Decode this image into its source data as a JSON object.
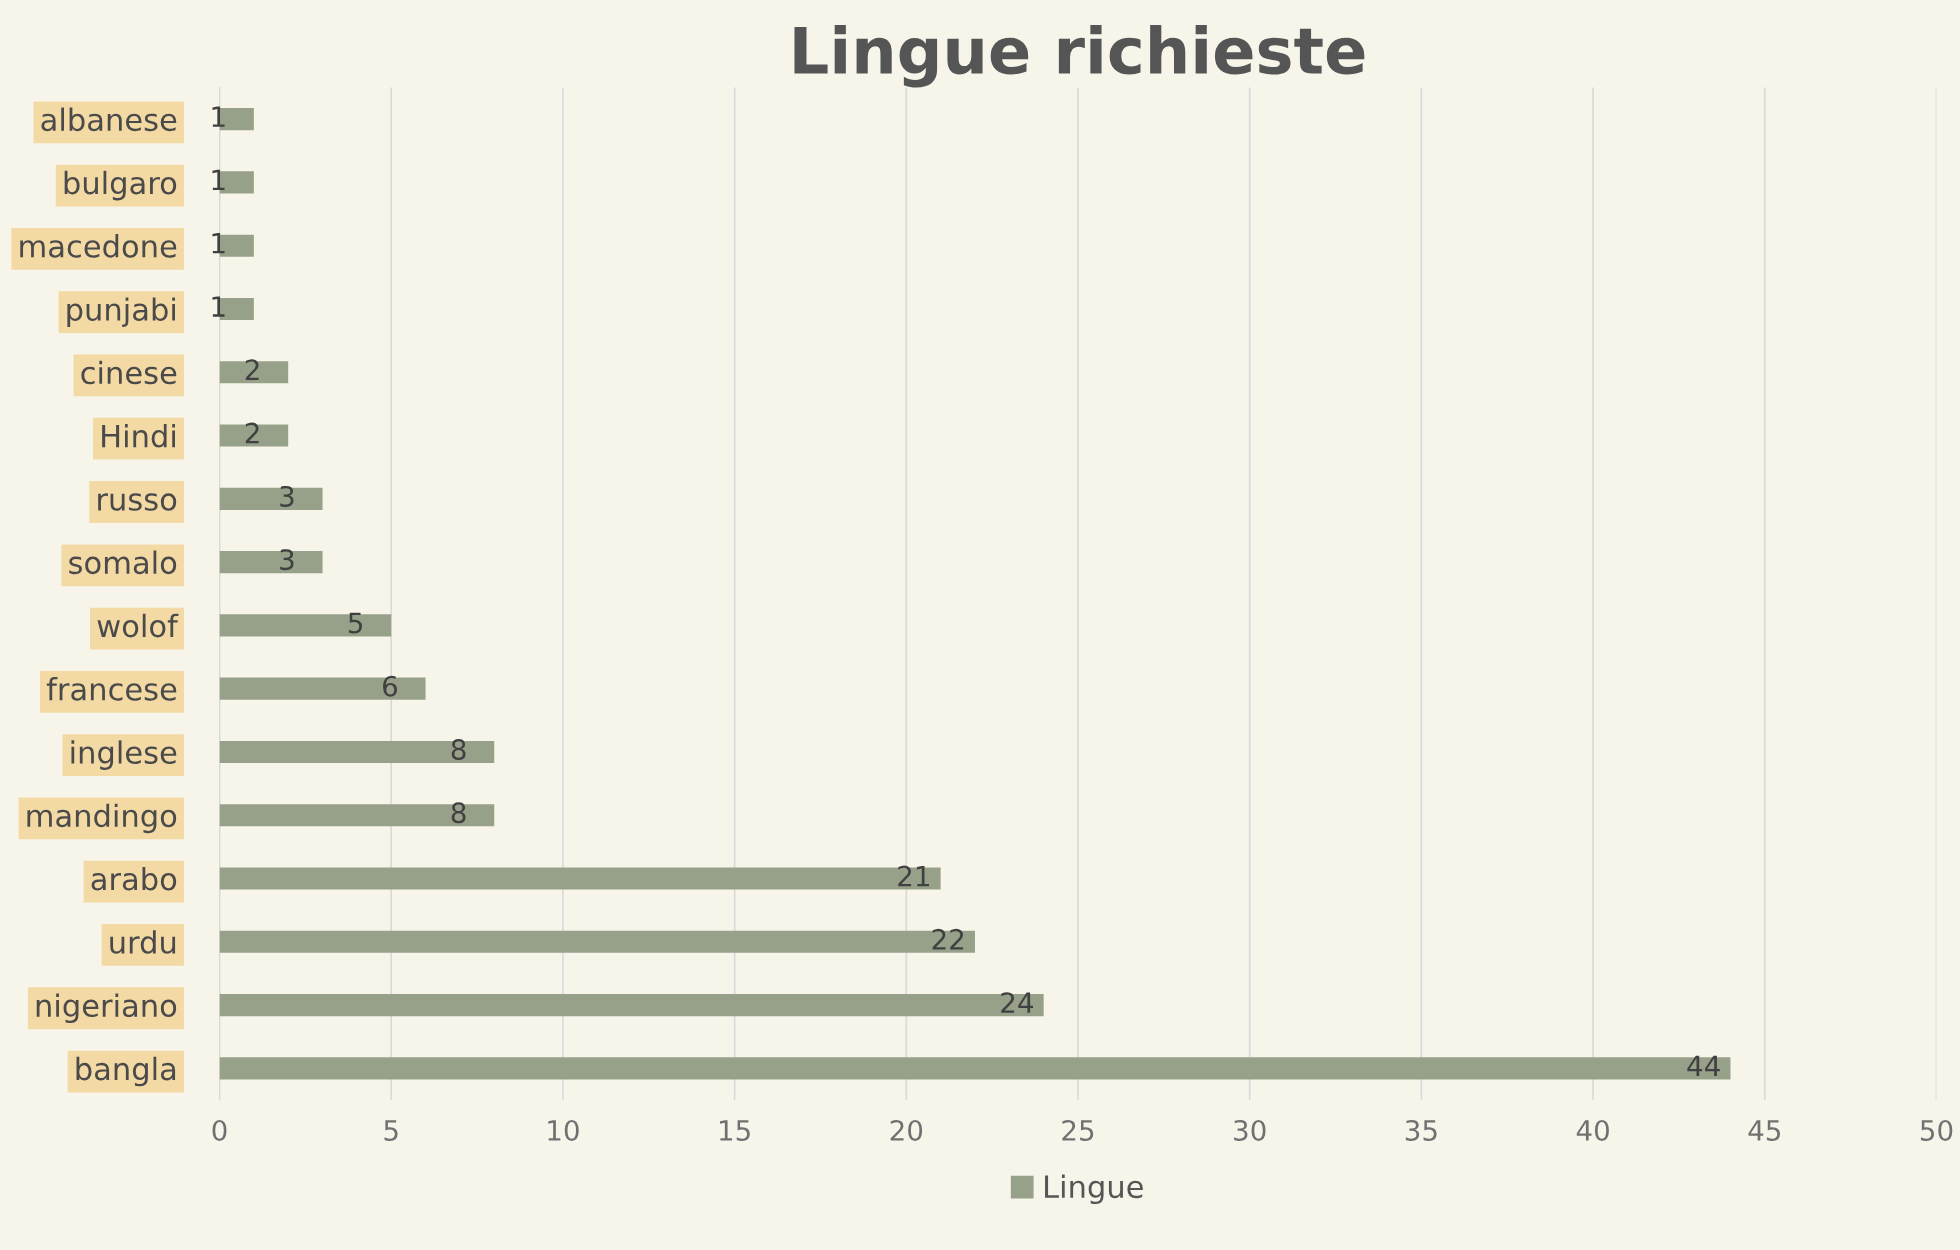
{
  "chart_data": {
    "type": "bar",
    "orientation": "horizontal",
    "title": "Lingue richieste",
    "categories": [
      "albanese",
      "bulgaro",
      "macedone",
      "punjabi",
      "cinese",
      "Hindi",
      "russo",
      "somalo",
      "wolof",
      "francese",
      "inglese",
      "mandingo",
      "arabo",
      "urdu",
      "nigeriano",
      "bangla"
    ],
    "series": [
      {
        "name": "Lingue",
        "color": "#97a18a",
        "values": [
          1,
          1,
          1,
          1,
          2,
          2,
          3,
          3,
          5,
          6,
          8,
          8,
          21,
          22,
          24,
          44
        ]
      }
    ],
    "xlim": [
      0,
      50
    ],
    "xticks": [
      0,
      5,
      10,
      15,
      20,
      25,
      30,
      35,
      40,
      45,
      50
    ],
    "grid": "x",
    "legend": "bottom",
    "data_labels": true
  }
}
